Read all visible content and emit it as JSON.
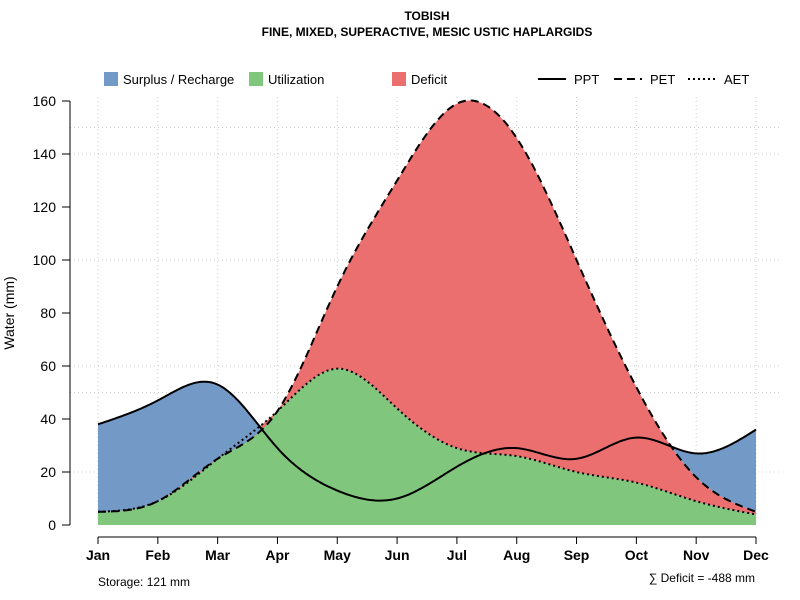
{
  "chart_data": {
    "type": "area",
    "title": "TOBISH",
    "subtitle": "FINE, MIXED, SUPERACTIVE, MESIC USTIC HAPLARGIDS",
    "ylabel": "Water (mm)",
    "xlabel": "",
    "ylim": [
      0,
      160
    ],
    "yticks": [
      0,
      20,
      40,
      60,
      80,
      100,
      120,
      140,
      160
    ],
    "categories": [
      "Jan",
      "Feb",
      "Mar",
      "Apr",
      "May",
      "Jun",
      "Jul",
      "Aug",
      "Sep",
      "Oct",
      "Nov",
      "Dec"
    ],
    "grid": true,
    "legend_position": "top",
    "legend": {
      "surplus": "Surplus / Recharge",
      "utilization": "Utilization",
      "deficit": "Deficit",
      "ppt": "PPT",
      "pet": "PET",
      "aet": "AET"
    },
    "series": [
      {
        "name": "PPT",
        "style": "solid",
        "values": [
          38,
          47,
          53,
          29,
          13,
          10,
          22,
          29,
          25,
          33,
          27,
          36
        ]
      },
      {
        "name": "PET",
        "style": "dashed",
        "values": [
          5,
          9,
          25,
          43,
          90,
          130,
          159,
          146,
          100,
          52,
          18,
          5
        ]
      },
      {
        "name": "AET",
        "style": "dotted",
        "values": [
          5,
          9,
          25,
          43,
          59,
          44,
          29,
          26,
          20,
          16,
          9,
          4
        ]
      }
    ],
    "colors": {
      "surplus": "#7399c6",
      "utilization": "#80c67d",
      "deficit": "#ec6f6f",
      "line": "#000000",
      "grid": "#cccccc"
    },
    "annotations": {
      "storage": "Storage: 121 mm",
      "deficit_total": "∑ Deficit = -488 mm"
    }
  }
}
